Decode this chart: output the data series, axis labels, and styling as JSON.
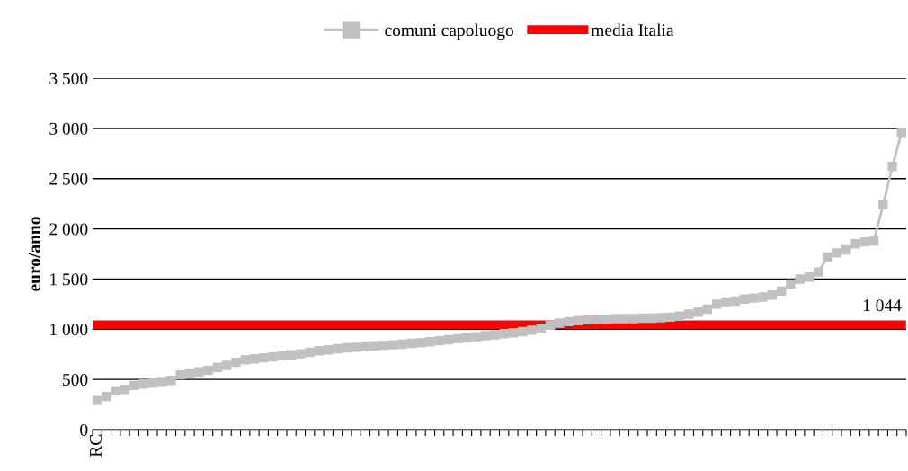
{
  "chart_data": {
    "type": "line",
    "ylabel": "euro/anno",
    "categories": [
      "RC",
      null,
      null,
      null,
      null,
      null,
      null,
      null,
      null,
      null,
      null,
      null,
      null,
      null,
      null,
      null,
      null,
      null,
      null,
      null,
      null,
      null,
      null,
      null,
      null,
      null,
      null,
      null,
      null,
      null,
      null,
      null,
      null,
      null,
      null,
      null,
      null,
      null,
      null,
      null,
      null,
      null,
      null,
      null,
      null,
      null,
      null,
      null,
      null,
      null,
      null,
      null,
      null,
      null,
      null,
      null,
      null,
      null,
      null,
      null,
      null,
      null,
      null,
      null,
      null,
      null,
      null,
      null,
      null,
      null,
      null,
      null,
      null,
      null,
      null,
      null,
      null,
      null,
      null,
      null,
      null,
      null,
      null,
      null,
      null,
      null,
      null,
      null
    ],
    "series": [
      {
        "name": "comuni capoluogo",
        "color": "#c0c0c0",
        "marker": "square",
        "values": [
          290,
          330,
          385,
          400,
          440,
          455,
          465,
          480,
          490,
          545,
          560,
          575,
          590,
          620,
          640,
          670,
          695,
          705,
          715,
          725,
          735,
          745,
          755,
          770,
          785,
          795,
          805,
          815,
          820,
          830,
          835,
          840,
          845,
          850,
          860,
          865,
          875,
          885,
          895,
          905,
          915,
          925,
          935,
          945,
          955,
          965,
          975,
          990,
          1010,
          1040,
          1060,
          1075,
          1085,
          1095,
          1100,
          1100,
          1105,
          1105,
          1105,
          1110,
          1110,
          1115,
          1120,
          1130,
          1150,
          1170,
          1200,
          1250,
          1270,
          1280,
          1300,
          1310,
          1320,
          1340,
          1380,
          1450,
          1500,
          1520,
          1570,
          1720,
          1760,
          1790,
          1850,
          1870,
          1880,
          2240,
          2620,
          2960
        ]
      },
      {
        "name": "media Italia",
        "color": "#ff0000",
        "marker": "none",
        "values": [
          1044,
          1044,
          1044,
          1044,
          1044,
          1044,
          1044,
          1044,
          1044,
          1044,
          1044,
          1044,
          1044,
          1044,
          1044,
          1044,
          1044,
          1044,
          1044,
          1044,
          1044,
          1044,
          1044,
          1044,
          1044,
          1044,
          1044,
          1044,
          1044,
          1044,
          1044,
          1044,
          1044,
          1044,
          1044,
          1044,
          1044,
          1044,
          1044,
          1044,
          1044,
          1044,
          1044,
          1044,
          1044,
          1044,
          1044,
          1044,
          1044,
          1044,
          1044,
          1044,
          1044,
          1044,
          1044,
          1044,
          1044,
          1044,
          1044,
          1044,
          1044,
          1044,
          1044,
          1044,
          1044,
          1044,
          1044,
          1044,
          1044,
          1044,
          1044,
          1044,
          1044,
          1044,
          1044,
          1044,
          1044,
          1044,
          1044,
          1044,
          1044,
          1044,
          1044,
          1044,
          1044,
          1044,
          1044,
          1044
        ],
        "value_labels": [
          null,
          null,
          null,
          null,
          null,
          null,
          null,
          null,
          null,
          null,
          null,
          null,
          null,
          null,
          null,
          null,
          null,
          null,
          null,
          null,
          null,
          null,
          null,
          null,
          null,
          null,
          null,
          null,
          null,
          null,
          null,
          null,
          null,
          null,
          null,
          null,
          null,
          null,
          null,
          null,
          null,
          null,
          null,
          null,
          null,
          null,
          null,
          null,
          null,
          null,
          null,
          null,
          null,
          null,
          null,
          null,
          null,
          null,
          null,
          null,
          null,
          null,
          null,
          null,
          null,
          null,
          null,
          null,
          null,
          null,
          null,
          null,
          null,
          null,
          null,
          null,
          null,
          null,
          null,
          null,
          null,
          null,
          null,
          null,
          null,
          null,
          null,
          "1 044"
        ]
      }
    ],
    "ylim": [
      0,
      3500
    ],
    "yticks": [
      0,
      500,
      {
        "value": 1000,
        "label": "1 000"
      },
      {
        "value": 1500,
        "label": "1 500"
      },
      {
        "value": 2000,
        "label": "2 000"
      },
      {
        "value": 2500,
        "label": "2 500"
      },
      {
        "value": 3000,
        "label": "3 000"
      },
      {
        "value": 3500,
        "label": "3 500"
      }
    ],
    "grid": "y",
    "legend": "top"
  }
}
